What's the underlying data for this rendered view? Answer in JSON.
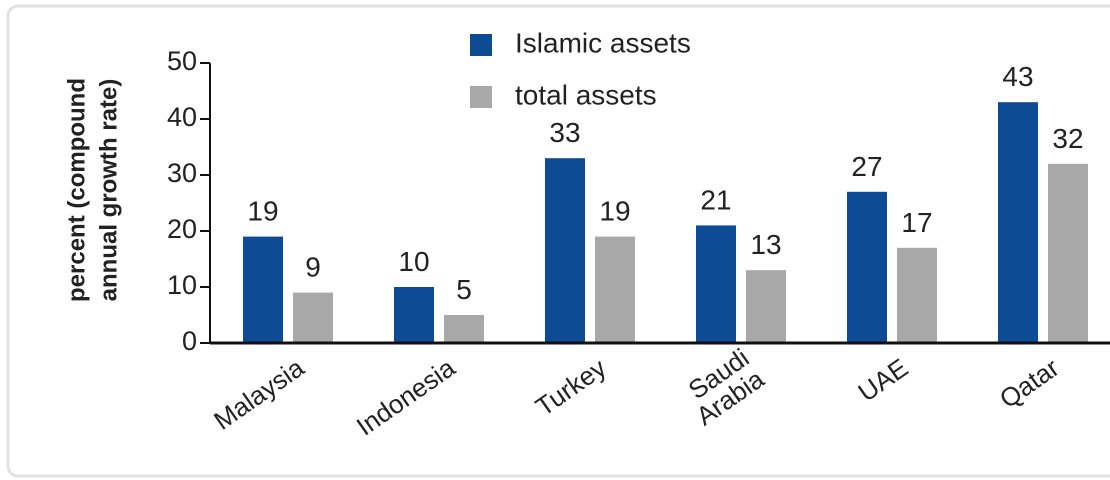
{
  "chart_data": {
    "type": "bar",
    "y_label": [
      "percent (compound",
      "annual growth rate)"
    ],
    "categories": [
      "Malaysia",
      "Indonesia",
      "Turkey",
      "Saudi Arabia",
      "UAE",
      "Qatar"
    ],
    "series": [
      {
        "name": "Islamic assets",
        "color": "#0d4b94",
        "values": [
          19,
          10,
          33,
          21,
          27,
          43
        ]
      },
      {
        "name": "total assets",
        "color": "#a8a8a8",
        "values": [
          9,
          5,
          19,
          13,
          17,
          32
        ]
      }
    ],
    "ylim": [
      0,
      50
    ],
    "yticks": [
      0,
      10,
      20,
      30,
      40,
      50
    ],
    "grid": false,
    "legend": "top"
  }
}
